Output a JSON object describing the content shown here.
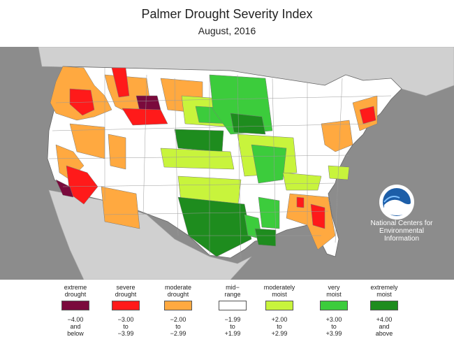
{
  "title": "Palmer Drought Severity Index",
  "subtitle": "August, 2016",
  "legend": [
    {
      "label1": "extreme",
      "label2": "drought",
      "r1": "−4.00",
      "r2": "and",
      "r3": "below",
      "color": "#7a0a3c"
    },
    {
      "label1": "severe",
      "label2": "drought",
      "r1": "−3.00",
      "r2": "to",
      "r3": "−3.99",
      "color": "#ff1a1a"
    },
    {
      "label1": "moderate",
      "label2": "drought",
      "r1": "−2.00",
      "r2": "to",
      "r3": "−2.99",
      "color": "#ffa940"
    },
    {
      "label1": "mid−",
      "label2": "range",
      "r1": "−1.99",
      "r2": "to",
      "r3": "+1.99",
      "color": "#ffffff"
    },
    {
      "label1": "moderately",
      "label2": "moist",
      "r1": "+2.00",
      "r2": "to",
      "r3": "+2.99",
      "color": "#c8f43c"
    },
    {
      "label1": "very",
      "label2": "moist",
      "r1": "+3.00",
      "r2": "to",
      "r3": "+3.99",
      "color": "#3ccc3c"
    },
    {
      "label1": "extremely",
      "label2": "moist",
      "r1": "+4.00",
      "r2": "and",
      "r3": "above",
      "color": "#1e8c1e"
    }
  ],
  "logo": {
    "text": "NOAA"
  },
  "agency": {
    "line1": "National Centers for",
    "line2": "Environmental",
    "line3": "Information"
  },
  "colors": {
    "background": "#8c8c8c",
    "ocean": "#a6a6a6",
    "land_outside": "#d0d0d0",
    "borders": "#888888"
  }
}
